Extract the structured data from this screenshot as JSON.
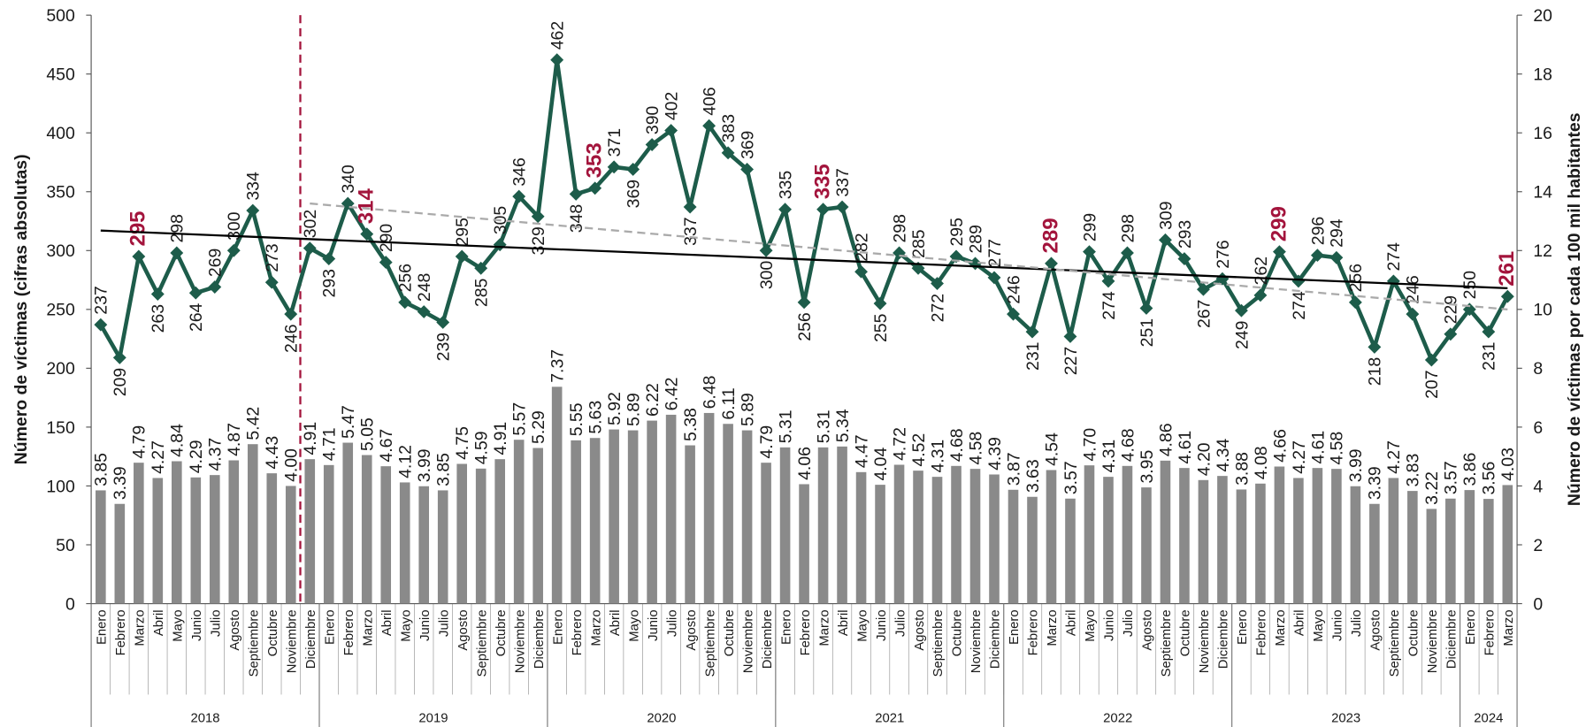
{
  "chart_data": {
    "type": "combo",
    "y_label": "Número de víctimas (cifras absolutas)",
    "y2_label": "Número de víctimas por cada 100 mil habitantes",
    "ylim": [
      0,
      500
    ],
    "yticks": [
      0,
      50,
      100,
      150,
      200,
      250,
      300,
      350,
      400,
      450,
      500
    ],
    "y2lim": [
      0,
      20
    ],
    "y2ticks": [
      0,
      2,
      4,
      6,
      8,
      10,
      12,
      14,
      16,
      18,
      20
    ],
    "categories": [
      "Enero",
      "Febrero",
      "Marzo",
      "Abril",
      "Mayo",
      "Junio",
      "Julio",
      "Agosto",
      "Septiembre",
      "Octubre",
      "Noviembre",
      "Diciembre",
      "Enero",
      "Febrero",
      "Marzo",
      "Abril",
      "Mayo",
      "Junio",
      "Julio",
      "Agosto",
      "Septiembre",
      "Octubre",
      "Noviembre",
      "Diciembre",
      "Enero",
      "Febrero",
      "Marzo",
      "Abril",
      "Mayo",
      "Junio",
      "Julio",
      "Agosto",
      "Septiembre",
      "Octubre",
      "Noviembre",
      "Diciembre",
      "Enero",
      "Febrero",
      "Marzo",
      "Abril",
      "Mayo",
      "Junio",
      "Julio",
      "Agosto",
      "Septiembre",
      "Octubre",
      "Noviembre",
      "Diciembre",
      "Enero",
      "Febrero",
      "Marzo",
      "Abril",
      "Mayo",
      "Junio",
      "Julio",
      "Agosto",
      "Septiembre",
      "Octubre",
      "Noviembre",
      "Diciembre",
      "Enero",
      "Febrero",
      "Marzo",
      "Abril",
      "Mayo",
      "Junio",
      "Julio",
      "Agosto",
      "Septiembre",
      "Octubre",
      "Noviembre",
      "Diciembre",
      "Enero",
      "Febrero",
      "Marzo"
    ],
    "groups": [
      {
        "label": "2018",
        "count": 12
      },
      {
        "label": "2019",
        "count": 12
      },
      {
        "label": "2020",
        "count": 12
      },
      {
        "label": "2021",
        "count": 12
      },
      {
        "label": "2022",
        "count": 12
      },
      {
        "label": "2023",
        "count": 12
      },
      {
        "label": "2024",
        "count": 3
      }
    ],
    "series": [
      {
        "type": "bar",
        "axis": "y2",
        "color": "#8a8a8a",
        "values": [
          3.85,
          3.39,
          4.79,
          4.27,
          4.84,
          4.29,
          4.37,
          4.87,
          5.42,
          4.43,
          4.0,
          4.91,
          4.71,
          5.47,
          5.05,
          4.67,
          4.12,
          3.99,
          3.85,
          4.75,
          4.59,
          4.91,
          5.57,
          5.29,
          7.37,
          5.55,
          5.63,
          5.92,
          5.89,
          6.22,
          6.42,
          5.38,
          6.48,
          6.11,
          5.89,
          4.79,
          5.31,
          4.06,
          5.31,
          5.34,
          4.47,
          4.04,
          4.72,
          4.52,
          4.31,
          4.68,
          4.58,
          4.39,
          3.87,
          3.63,
          4.54,
          3.57,
          4.7,
          4.31,
          4.68,
          3.95,
          4.86,
          4.61,
          4.2,
          4.34,
          3.88,
          4.08,
          4.66,
          4.27,
          4.61,
          4.58,
          3.99,
          3.39,
          4.27,
          3.83,
          3.22,
          3.57,
          3.86,
          3.56,
          4.03
        ],
        "value_labels": [
          "3.85",
          "3.39",
          "4.79",
          "4.27",
          "4.84",
          "4.29",
          "4.37",
          "4.87",
          "5.42",
          "4.43",
          "4.00",
          "4.91",
          "4.71",
          "5.47",
          "5.05",
          "4.67",
          "4.12",
          "3.99",
          "3.85",
          "4.75",
          "4.59",
          "4.91",
          "5.57",
          "5.29",
          "7.37",
          "5.55",
          "5.63",
          "5.92",
          "5.89",
          "6.22",
          "6.42",
          "5.38",
          "6.48",
          "6.11",
          "5.89",
          "4.79",
          "5.31",
          "4.06",
          "5.31",
          "5.34",
          "4.47",
          "4.04",
          "4.72",
          "4.52",
          "4.31",
          "4.68",
          "4.58",
          "4.39",
          "3.87",
          "3.63",
          "4.54",
          "3.57",
          "4.70",
          "4.31",
          "4.68",
          "3.95",
          "4.86",
          "4.61",
          "4.20",
          "4.34",
          "3.88",
          "4.08",
          "4.66",
          "4.27",
          "4.61",
          "4.58",
          "3.99",
          "3.39",
          "4.27",
          "3.83",
          "3.22",
          "3.57",
          "3.86",
          "3.56",
          "4.03"
        ]
      },
      {
        "type": "line",
        "color": "#1d5c4a",
        "highlight_color": "#a3143c",
        "highlighted": [
          2,
          14,
          26,
          38,
          50,
          62,
          74
        ],
        "values": [
          237,
          209,
          295,
          263,
          298,
          264,
          269,
          300,
          334,
          273,
          246,
          302,
          293,
          340,
          314,
          290,
          256,
          248,
          239,
          295,
          285,
          305,
          346,
          329,
          462,
          348,
          353,
          371,
          369,
          390,
          402,
          337,
          406,
          383,
          369,
          300,
          335,
          256,
          335,
          337,
          282,
          255,
          298,
          285,
          272,
          295,
          289,
          277,
          246,
          231,
          289,
          227,
          299,
          274,
          298,
          251,
          309,
          293,
          267,
          276,
          249,
          262,
          299,
          274,
          296,
          294,
          256,
          218,
          274,
          246,
          207,
          229,
          250,
          231,
          261
        ]
      }
    ],
    "trend_lines": [
      {
        "color": "#000000",
        "dash": false,
        "start": [
          0,
          317
        ],
        "end": [
          74,
          268
        ]
      },
      {
        "color": "#aaaaaa",
        "dash": true,
        "start": [
          11,
          340
        ],
        "end": [
          74,
          250
        ]
      }
    ],
    "divider": {
      "after_index": 10,
      "color": "#a3143c"
    }
  }
}
